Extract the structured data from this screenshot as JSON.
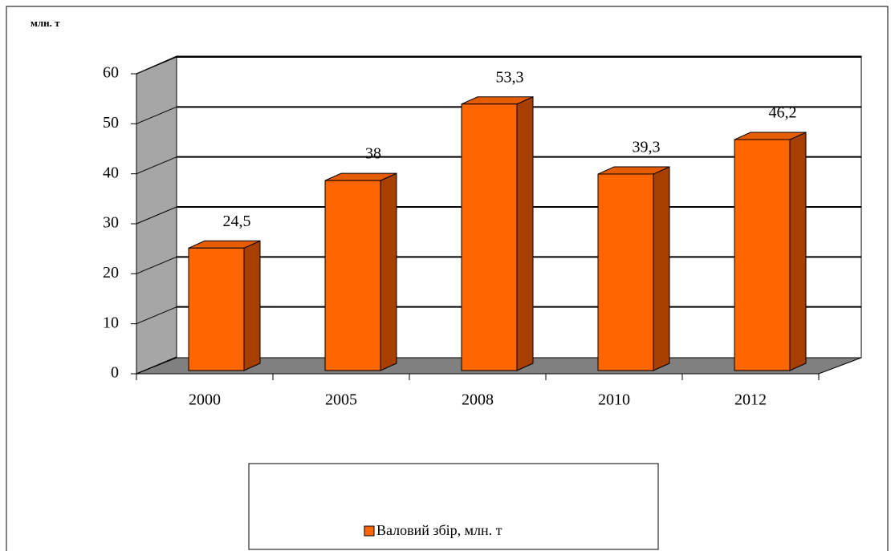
{
  "chart_data": {
    "type": "bar",
    "y_axis_label": "млн. т",
    "categories": [
      "2000",
      "2005",
      "2008",
      "2010",
      "2012"
    ],
    "series": [
      {
        "name": "Валовий збір, млн. т",
        "color": "#ff6600",
        "values": [
          24.5,
          38,
          53.3,
          39.3,
          46.2
        ],
        "value_labels": [
          "24,5",
          "38",
          "53,3",
          "39,3",
          "46,2"
        ]
      }
    ],
    "ylim": [
      0,
      60
    ],
    "yticks": [
      0,
      10,
      20,
      30,
      40,
      50,
      60
    ],
    "grid": true,
    "legend": "bottom"
  }
}
